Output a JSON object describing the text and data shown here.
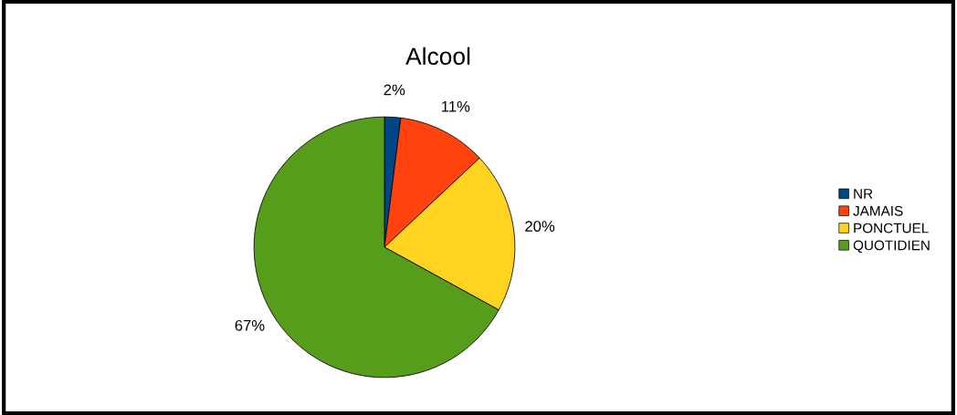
{
  "chart_data": {
    "type": "pie",
    "title": "Alcool",
    "categories": [
      "NR",
      "JAMAIS",
      "PONCTUEL",
      "QUOTIDIEN"
    ],
    "values": [
      2,
      11,
      20,
      67
    ],
    "colors": [
      "#004586",
      "#ff420e",
      "#ffd320",
      "#579d1c"
    ],
    "value_labels": [
      "2%",
      "11%",
      "20%",
      "67%"
    ],
    "legend": "right"
  }
}
